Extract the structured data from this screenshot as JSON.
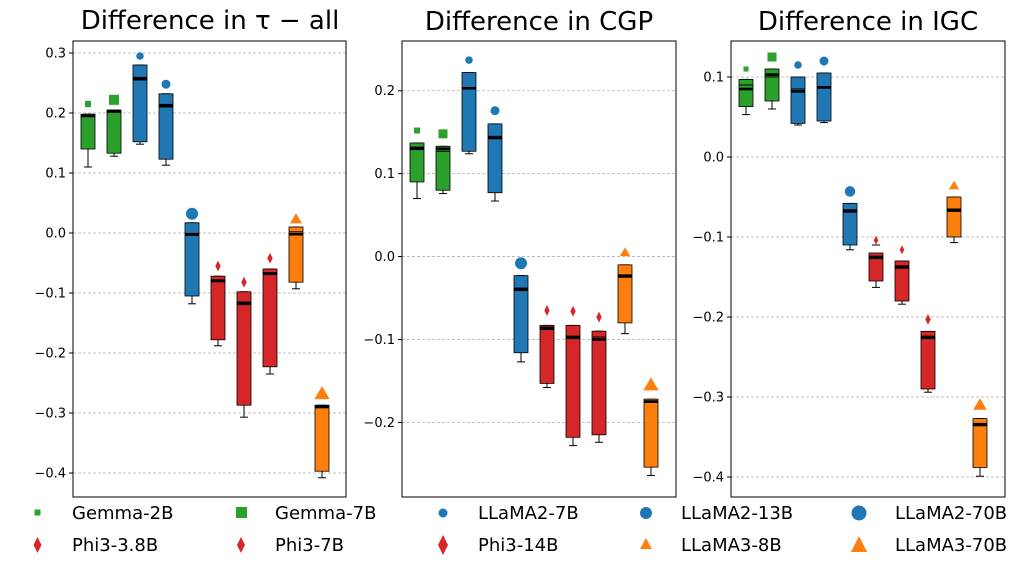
{
  "chart_data": {
    "type": "box",
    "legend": {
      "placement": "bottom",
      "entries": [
        {
          "name": "Gemma-2B",
          "color": "#2ca02c",
          "marker": "square",
          "size": "small"
        },
        {
          "name": "Gemma-7B",
          "color": "#2ca02c",
          "marker": "square",
          "size": "medium"
        },
        {
          "name": "LLaMA2-7B",
          "color": "#1f77b4",
          "marker": "circle",
          "size": "small"
        },
        {
          "name": "LLaMA2-13B",
          "color": "#1f77b4",
          "marker": "circle",
          "size": "medium"
        },
        {
          "name": "LLaMA2-70B",
          "color": "#1f77b4",
          "marker": "circle",
          "size": "large"
        },
        {
          "name": "Phi3-3.8B",
          "color": "#d62728",
          "marker": "diamond",
          "size": "small"
        },
        {
          "name": "Phi3-7B",
          "color": "#d62728",
          "marker": "diamond",
          "size": "small"
        },
        {
          "name": "Phi3-14B",
          "color": "#d62728",
          "marker": "diamond",
          "size": "medium"
        },
        {
          "name": "LLaMA3-8B",
          "color": "#ff7f0e",
          "marker": "triangle",
          "size": "small"
        },
        {
          "name": "LLaMA3-70B",
          "color": "#ff7f0e",
          "marker": "triangle",
          "size": "large"
        }
      ]
    },
    "panels": [
      {
        "title": "Difference in τ − all",
        "ylim": [
          -0.44,
          0.32
        ],
        "yticks": [
          0.3,
          0.2,
          0.1,
          0.0,
          -0.1,
          -0.2,
          -0.3,
          -0.4
        ],
        "ytick_labels": [
          "0.3",
          "0.2",
          "0.1",
          "0.0",
          "−0.1",
          "−0.2",
          "−0.3",
          "−0.4"
        ],
        "boxes": [
          {
            "model": "Gemma-2B",
            "color": "#2ca02c",
            "q1": 0.14,
            "q3": 0.198,
            "median": 0.195,
            "mean": 0.195,
            "whislo": 0.11,
            "whishi": 0.198,
            "marker_y": 0.215,
            "marker": "square",
            "msize": 6
          },
          {
            "model": "Gemma-7B",
            "color": "#2ca02c",
            "q1": 0.133,
            "q3": 0.205,
            "median": 0.203,
            "mean": 0.201,
            "whislo": 0.128,
            "whishi": 0.205,
            "marker_y": 0.222,
            "marker": "square",
            "msize": 10
          },
          {
            "model": "LLaMA2-7B",
            "color": "#1f77b4",
            "q1": 0.152,
            "q3": 0.28,
            "median": 0.258,
            "mean": 0.255,
            "whislo": 0.148,
            "whishi": 0.28,
            "marker_y": 0.295,
            "marker": "circle",
            "msize": 5
          },
          {
            "model": "LLaMA2-13B",
            "color": "#1f77b4",
            "q1": 0.123,
            "q3": 0.232,
            "median": 0.213,
            "mean": 0.21,
            "whislo": 0.113,
            "whishi": 0.232,
            "marker_y": 0.248,
            "marker": "circle",
            "msize": 6
          },
          {
            "model": "LLaMA2-70B",
            "color": "#1f77b4",
            "q1": -0.105,
            "q3": 0.017,
            "median": -0.002,
            "mean": -0.004,
            "whislo": -0.118,
            "whishi": 0.017,
            "marker_y": 0.032,
            "marker": "circle",
            "msize": 8
          },
          {
            "model": "Phi3-3.8B",
            "color": "#d62728",
            "q1": -0.178,
            "q3": -0.072,
            "median": -0.08,
            "mean": -0.078,
            "whislo": -0.188,
            "whishi": -0.072,
            "marker_y": -0.055,
            "marker": "diamond",
            "msize": 6
          },
          {
            "model": "Phi3-7B",
            "color": "#d62728",
            "q1": -0.287,
            "q3": -0.098,
            "median": -0.118,
            "mean": -0.115,
            "whislo": -0.307,
            "whishi": -0.098,
            "marker_y": -0.082,
            "marker": "diamond",
            "msize": 6
          },
          {
            "model": "Phi3-14B",
            "color": "#d62728",
            "q1": -0.223,
            "q3": -0.06,
            "median": -0.068,
            "mean": -0.066,
            "whislo": -0.235,
            "whishi": -0.06,
            "marker_y": -0.042,
            "marker": "diamond",
            "msize": 6
          },
          {
            "model": "LLaMA3-8B",
            "color": "#ff7f0e",
            "q1": -0.082,
            "q3": 0.01,
            "median": -0.002,
            "mean": 0.002,
            "whislo": -0.093,
            "whishi": 0.01,
            "marker_y": 0.023,
            "marker": "triangle",
            "msize": 7
          },
          {
            "model": "LLaMA3-70B",
            "color": "#ff7f0e",
            "q1": -0.397,
            "q3": -0.287,
            "median": -0.29,
            "mean": -0.288,
            "whislo": -0.408,
            "whishi": -0.287,
            "marker_y": -0.268,
            "marker": "triangle",
            "msize": 9
          }
        ]
      },
      {
        "title": "Difference in CGP",
        "ylim": [
          -0.29,
          0.26
        ],
        "yticks": [
          0.2,
          0.1,
          0.0,
          -0.1,
          -0.2
        ],
        "ytick_labels": [
          "0.2",
          "0.1",
          "0.0",
          "−0.1",
          "−0.2"
        ],
        "boxes": [
          {
            "model": "Gemma-2B",
            "color": "#2ca02c",
            "q1": 0.09,
            "q3": 0.137,
            "median": 0.13,
            "mean": 0.132,
            "whislo": 0.07,
            "whishi": 0.137,
            "marker_y": 0.152,
            "marker": "square",
            "msize": 6
          },
          {
            "model": "Gemma-7B",
            "color": "#2ca02c",
            "q1": 0.08,
            "q3": 0.133,
            "median": 0.13,
            "mean": 0.127,
            "whislo": 0.076,
            "whishi": 0.133,
            "marker_y": 0.148,
            "marker": "square",
            "msize": 9
          },
          {
            "model": "LLaMA2-7B",
            "color": "#1f77b4",
            "q1": 0.127,
            "q3": 0.222,
            "median": 0.203,
            "mean": 0.203,
            "whislo": 0.124,
            "whishi": 0.222,
            "marker_y": 0.237,
            "marker": "circle",
            "msize": 5
          },
          {
            "model": "LLaMA2-13B",
            "color": "#1f77b4",
            "q1": 0.077,
            "q3": 0.16,
            "median": 0.143,
            "mean": 0.145,
            "whislo": 0.067,
            "whishi": 0.16,
            "marker_y": 0.176,
            "marker": "circle",
            "msize": 6
          },
          {
            "model": "LLaMA2-70B",
            "color": "#1f77b4",
            "q1": -0.116,
            "q3": -0.023,
            "median": -0.04,
            "mean": -0.038,
            "whislo": -0.127,
            "whishi": -0.023,
            "marker_y": -0.008,
            "marker": "circle",
            "msize": 8
          },
          {
            "model": "Phi3-3.8B",
            "color": "#d62728",
            "q1": -0.153,
            "q3": -0.083,
            "median": -0.087,
            "mean": -0.085,
            "whislo": -0.158,
            "whishi": -0.083,
            "marker_y": -0.065,
            "marker": "diamond",
            "msize": 6
          },
          {
            "model": "Phi3-7B",
            "color": "#d62728",
            "q1": -0.218,
            "q3": -0.083,
            "median": -0.098,
            "mean": -0.096,
            "whislo": -0.228,
            "whishi": -0.083,
            "marker_y": -0.066,
            "marker": "diamond",
            "msize": 6
          },
          {
            "model": "Phi3-14B",
            "color": "#d62728",
            "q1": -0.215,
            "q3": -0.09,
            "median": -0.1,
            "mean": -0.097,
            "whislo": -0.224,
            "whishi": -0.09,
            "marker_y": -0.073,
            "marker": "diamond",
            "msize": 6
          },
          {
            "model": "LLaMA3-8B",
            "color": "#ff7f0e",
            "q1": -0.08,
            "q3": -0.01,
            "median": -0.023,
            "mean": -0.025,
            "whislo": -0.093,
            "whishi": -0.01,
            "marker_y": 0.005,
            "marker": "triangle",
            "msize": 6
          },
          {
            "model": "LLaMA3-70B",
            "color": "#ff7f0e",
            "q1": -0.254,
            "q3": -0.172,
            "median": -0.175,
            "mean": -0.174,
            "whislo": -0.264,
            "whishi": -0.172,
            "marker_y": -0.155,
            "marker": "triangle",
            "msize": 9
          }
        ]
      },
      {
        "title": "Difference in IGC",
        "ylim": [
          -0.425,
          0.145
        ],
        "yticks": [
          0.1,
          0.0,
          -0.1,
          -0.2,
          -0.3,
          -0.4
        ],
        "ytick_labels": [
          "0.1",
          "0.0",
          "−0.1",
          "−0.2",
          "−0.3",
          "−0.4"
        ],
        "boxes": [
          {
            "model": "Gemma-2B",
            "color": "#2ca02c",
            "q1": 0.063,
            "q3": 0.097,
            "median": 0.085,
            "mean": 0.09,
            "whislo": 0.053,
            "whishi": 0.097,
            "marker_y": 0.11,
            "marker": "square",
            "msize": 5
          },
          {
            "model": "Gemma-7B",
            "color": "#2ca02c",
            "q1": 0.07,
            "q3": 0.11,
            "median": 0.103,
            "mean": 0.1,
            "whislo": 0.06,
            "whishi": 0.11,
            "marker_y": 0.125,
            "marker": "square",
            "msize": 9
          },
          {
            "model": "LLaMA2-7B",
            "color": "#1f77b4",
            "q1": 0.042,
            "q3": 0.1,
            "median": 0.082,
            "mean": 0.085,
            "whislo": 0.04,
            "whishi": 0.1,
            "marker_y": 0.115,
            "marker": "circle",
            "msize": 5
          },
          {
            "model": "LLaMA2-13B",
            "color": "#1f77b4",
            "q1": 0.045,
            "q3": 0.105,
            "median": 0.087,
            "mean": 0.087,
            "whislo": 0.043,
            "whishi": 0.105,
            "marker_y": 0.12,
            "marker": "circle",
            "msize": 6
          },
          {
            "model": "LLaMA2-70B",
            "color": "#1f77b4",
            "q1": -0.11,
            "q3": -0.058,
            "median": -0.068,
            "mean": -0.066,
            "whislo": -0.116,
            "whishi": -0.058,
            "marker_y": -0.043,
            "marker": "circle",
            "msize": 7
          },
          {
            "model": "Phi3-3.8B",
            "color": "#d62728",
            "q1": -0.155,
            "q3": -0.12,
            "median": -0.126,
            "mean": -0.124,
            "whislo": -0.163,
            "whishi": -0.11,
            "marker_y": -0.104,
            "marker": "diamond",
            "msize": 5
          },
          {
            "model": "Phi3-7B",
            "color": "#d62728",
            "q1": -0.18,
            "q3": -0.13,
            "median": -0.138,
            "mean": -0.136,
            "whislo": -0.184,
            "whishi": -0.13,
            "marker_y": -0.116,
            "marker": "diamond",
            "msize": 5
          },
          {
            "model": "Phi3-14B",
            "color": "#d62728",
            "q1": -0.29,
            "q3": -0.218,
            "median": -0.226,
            "mean": -0.224,
            "whislo": -0.294,
            "whishi": -0.218,
            "marker_y": -0.203,
            "marker": "diamond",
            "msize": 6
          },
          {
            "model": "LLaMA3-8B",
            "color": "#ff7f0e",
            "q1": -0.1,
            "q3": -0.05,
            "median": -0.067,
            "mean": -0.065,
            "whislo": -0.107,
            "whishi": -0.05,
            "marker_y": -0.036,
            "marker": "triangle",
            "msize": 6
          },
          {
            "model": "LLaMA3-70B",
            "color": "#ff7f0e",
            "q1": -0.388,
            "q3": -0.327,
            "median": -0.335,
            "mean": -0.333,
            "whislo": -0.399,
            "whishi": -0.327,
            "marker_y": -0.31,
            "marker": "triangle",
            "msize": 8
          }
        ]
      }
    ]
  }
}
